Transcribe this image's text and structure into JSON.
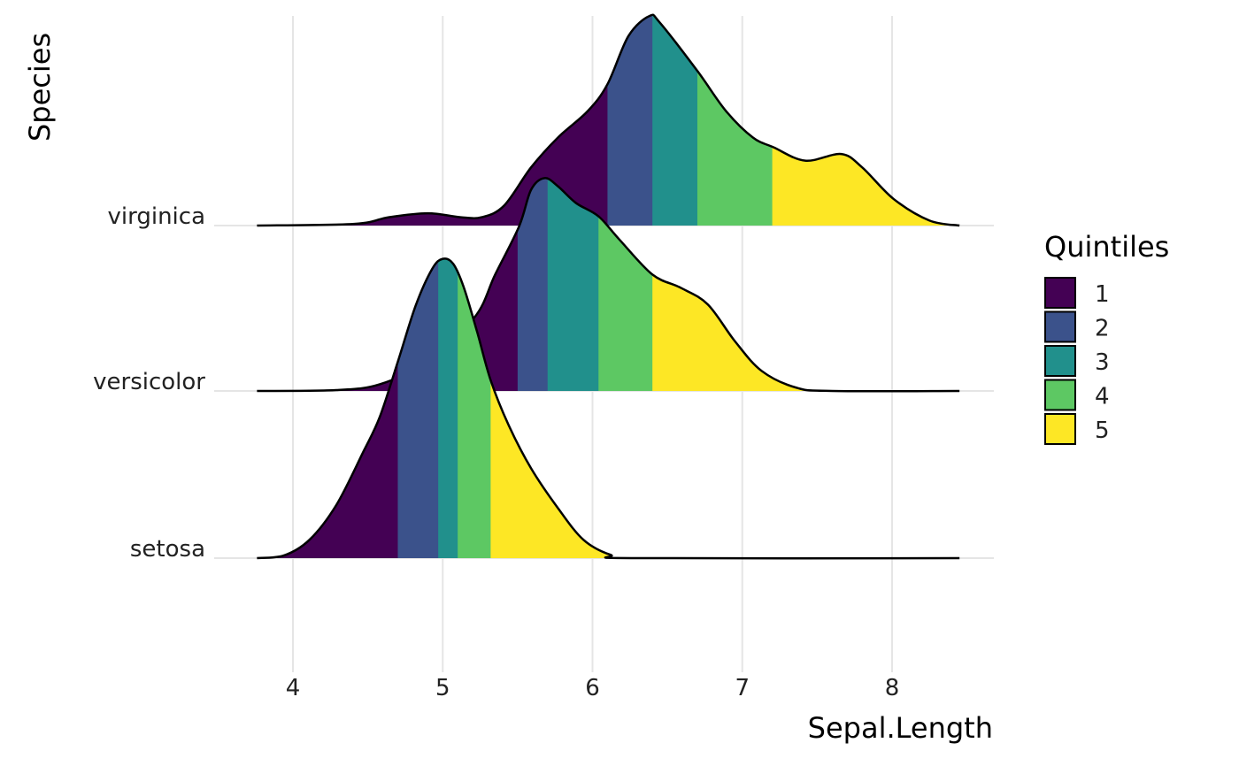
{
  "chart_data": {
    "type": "ridgeline",
    "xlabel": "Sepal.Length",
    "ylabel": "Species",
    "x_ticks": [
      4,
      5,
      6,
      7,
      8
    ],
    "xlim": [
      3.5,
      8.7
    ],
    "grid": true,
    "legend": {
      "title": "Quintiles",
      "position": "right",
      "entries": [
        "1",
        "2",
        "3",
        "4",
        "5"
      ],
      "colors": [
        "#440154",
        "#3B528B",
        "#21908C",
        "#5DC863",
        "#FDE725"
      ]
    },
    "categories": [
      "setosa",
      "versicolor",
      "virginica"
    ],
    "series": [
      {
        "name": "setosa",
        "quintile_breaks": [
          4.7,
          4.97,
          5.1,
          5.32
        ],
        "density": [
          [
            3.76,
            0
          ],
          [
            3.94,
            0.016
          ],
          [
            4.11,
            0.11
          ],
          [
            4.29,
            0.32
          ],
          [
            4.47,
            0.64
          ],
          [
            4.58,
            0.85
          ],
          [
            4.7,
            1.18
          ],
          [
            4.82,
            1.52
          ],
          [
            4.93,
            1.74
          ],
          [
            5.0,
            1.8
          ],
          [
            5.07,
            1.77
          ],
          [
            5.14,
            1.63
          ],
          [
            5.23,
            1.36
          ],
          [
            5.32,
            1.07
          ],
          [
            5.44,
            0.8
          ],
          [
            5.59,
            0.54
          ],
          [
            5.77,
            0.3
          ],
          [
            5.94,
            0.11
          ],
          [
            6.12,
            0.02
          ],
          [
            6.3,
            0
          ],
          [
            8.45,
            0
          ]
        ]
      },
      {
        "name": "versicolor",
        "quintile_breaks": [
          5.5,
          5.7,
          6.04,
          6.4
        ],
        "density": [
          [
            3.76,
            0
          ],
          [
            4.29,
            0.005
          ],
          [
            4.58,
            0.04
          ],
          [
            4.88,
            0.17
          ],
          [
            5.21,
            0.44
          ],
          [
            5.35,
            0.7
          ],
          [
            5.51,
            0.99
          ],
          [
            5.59,
            1.21
          ],
          [
            5.68,
            1.28
          ],
          [
            5.77,
            1.23
          ],
          [
            5.89,
            1.13
          ],
          [
            6.04,
            1.05
          ],
          [
            6.18,
            0.91
          ],
          [
            6.4,
            0.7
          ],
          [
            6.59,
            0.62
          ],
          [
            6.77,
            0.52
          ],
          [
            6.95,
            0.3
          ],
          [
            7.13,
            0.12
          ],
          [
            7.36,
            0.02
          ],
          [
            7.6,
            0
          ],
          [
            8.45,
            0
          ]
        ]
      },
      {
        "name": "virginica",
        "quintile_breaks": [
          6.1,
          6.4,
          6.7,
          7.2
        ],
        "density": [
          [
            3.76,
            0
          ],
          [
            4.41,
            0.01
          ],
          [
            4.64,
            0.05
          ],
          [
            4.9,
            0.074
          ],
          [
            5.12,
            0.05
          ],
          [
            5.26,
            0.05
          ],
          [
            5.41,
            0.12
          ],
          [
            5.59,
            0.35
          ],
          [
            5.77,
            0.53
          ],
          [
            5.97,
            0.69
          ],
          [
            6.1,
            0.85
          ],
          [
            6.24,
            1.14
          ],
          [
            6.38,
            1.26
          ],
          [
            6.45,
            1.22
          ],
          [
            6.7,
            0.93
          ],
          [
            6.89,
            0.69
          ],
          [
            7.07,
            0.53
          ],
          [
            7.21,
            0.47
          ],
          [
            7.42,
            0.39
          ],
          [
            7.66,
            0.43
          ],
          [
            7.8,
            0.35
          ],
          [
            8.01,
            0.16
          ],
          [
            8.25,
            0.03
          ],
          [
            8.45,
            0
          ]
        ]
      }
    ]
  }
}
